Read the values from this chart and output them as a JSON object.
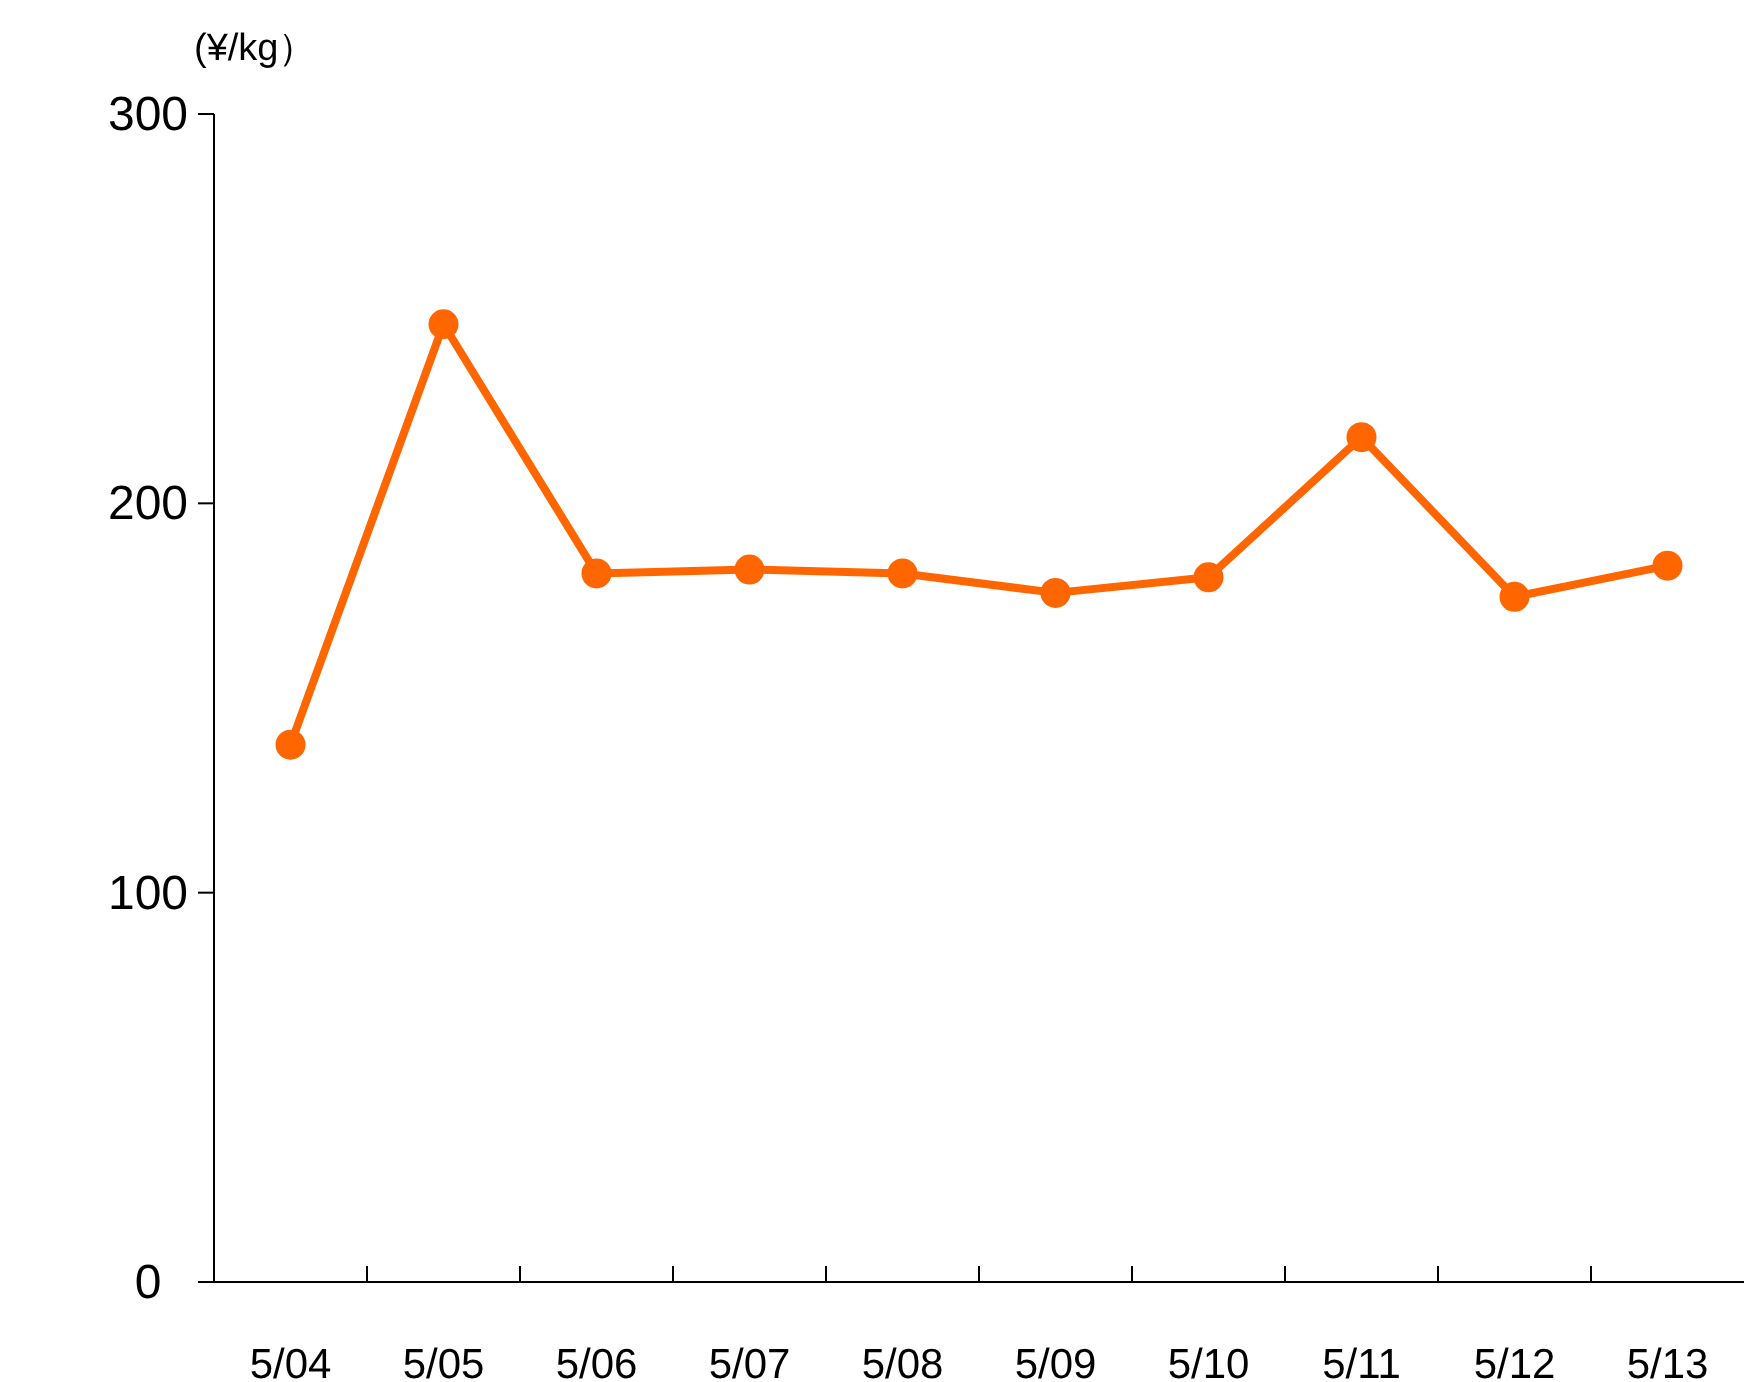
{
  "chart_data": {
    "type": "line",
    "ylabel": "(¥/kg）",
    "categories": [
      "5/04",
      "5/05",
      "5/06",
      "5/07",
      "5/08",
      "5/09",
      "5/10",
      "5/11",
      "5/12",
      "5/13"
    ],
    "series": [
      {
        "color": "#ff6600",
        "values": [
          138,
          246,
          182,
          183,
          182,
          177,
          181,
          217,
          176,
          184
        ]
      }
    ],
    "ylim": [
      0,
      300
    ],
    "yticks": [
      0,
      100,
      200,
      300
    ],
    "grid": false,
    "marker": "circle",
    "line_style": "solid"
  }
}
